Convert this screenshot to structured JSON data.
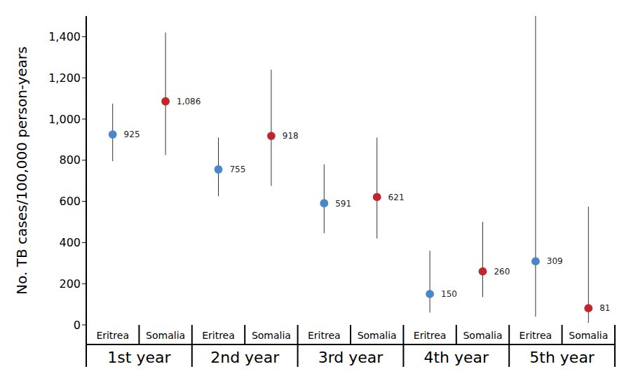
{
  "chart_data": {
    "type": "scatter",
    "y_label": "No. TB cases/100,000 person-years",
    "categories": [
      "Eritrea",
      "Somalia",
      "Eritrea",
      "Somalia",
      "Eritrea",
      "Somalia",
      "Eritrea",
      "Somalia",
      "Eritrea",
      "Somalia"
    ],
    "groups": [
      "1st year",
      "2nd year",
      "3rd year",
      "4th year",
      "5th year"
    ],
    "values": [
      925,
      1086,
      755,
      918,
      591,
      621,
      150,
      260,
      309,
      81
    ],
    "value_labels": [
      "925",
      "1,086",
      "755",
      "918",
      "591",
      "621",
      "150",
      "260",
      "309",
      "81"
    ],
    "ci_lower": [
      795,
      825,
      625,
      675,
      445,
      420,
      60,
      135,
      40,
      10
    ],
    "ci_upper": [
      1075,
      1420,
      910,
      1240,
      780,
      910,
      360,
      500,
      1500,
      575
    ],
    "colors": [
      "#4a86c8",
      "#c0272d",
      "#4a86c8",
      "#c0272d",
      "#4a86c8",
      "#c0272d",
      "#4a86c8",
      "#c0272d",
      "#4a86c8",
      "#c0272d"
    ],
    "ylim": [
      0,
      1500
    ],
    "yticks": [
      0,
      200,
      400,
      600,
      800,
      {
        "value": 1000,
        "label": "1,000"
      },
      {
        "value": 1200,
        "label": "1,200"
      },
      {
        "value": 1400,
        "label": "1,400"
      }
    ],
    "data_labels": true,
    "grid": false,
    "marker": "circle"
  }
}
